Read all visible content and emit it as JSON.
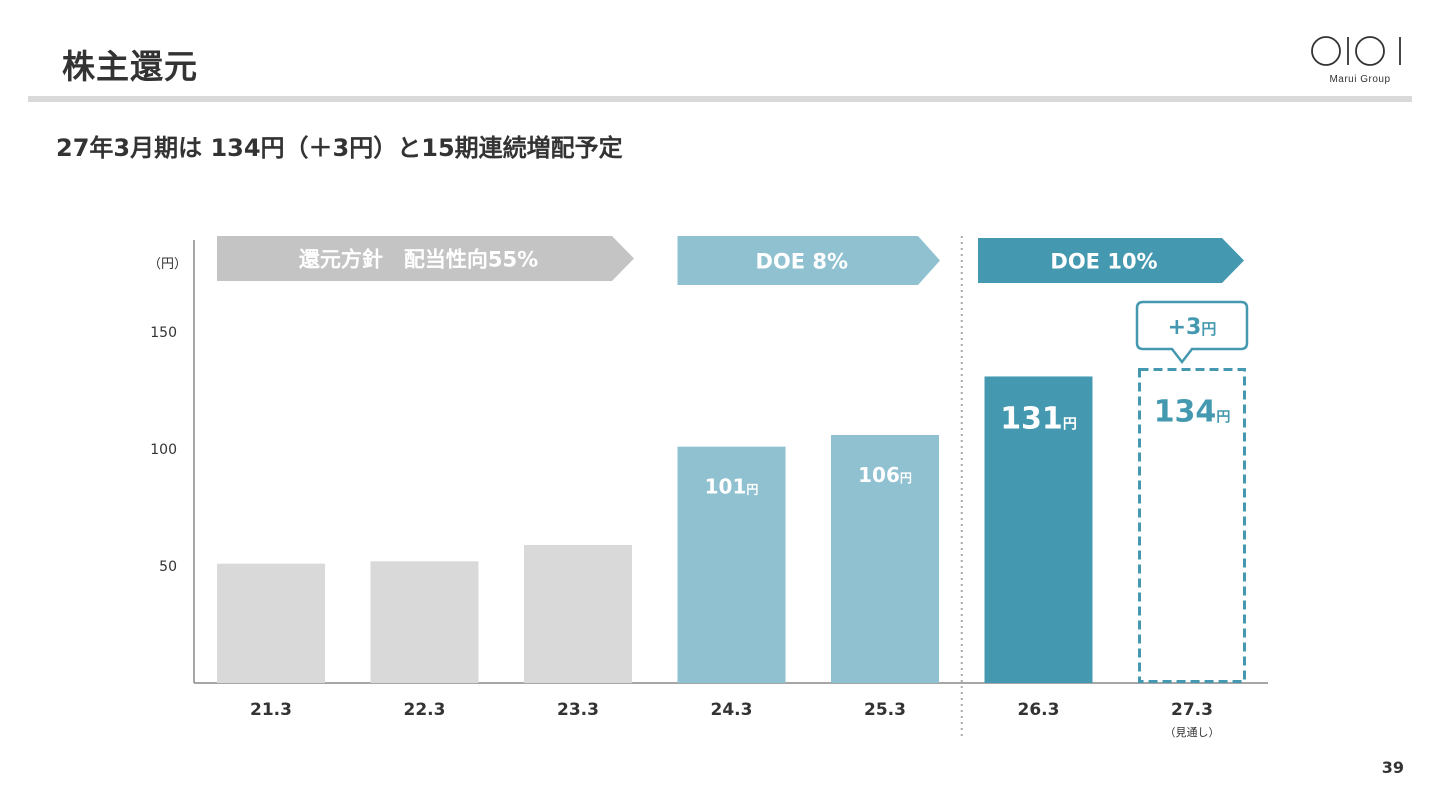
{
  "header": {
    "title": "株主還元",
    "logo_text": "Marui Group"
  },
  "headline": "27年3月期は 134円（＋3円）と15期連続増配予定",
  "page_number": "39",
  "colors": {
    "grey_bar": "#d9d9d9",
    "light_teal_bar": "#8fc1d1",
    "teal_bar": "#4499b0",
    "grey_banner": "#c4c4c4",
    "light_teal_banner": "#8fc1d1",
    "teal_banner": "#4499b0",
    "axis": "#888888"
  },
  "chart_data": {
    "type": "bar",
    "unit_label": "（円）",
    "categories": [
      "21.3",
      "22.3",
      "23.3",
      "24.3",
      "25.3",
      "26.3",
      "27.3"
    ],
    "category_notes": [
      "",
      "",
      "",
      "",
      "",
      "",
      "（見通し）"
    ],
    "values": [
      51,
      52,
      59,
      101,
      106,
      131,
      134
    ],
    "value_labels": [
      "",
      "",
      "",
      "101",
      "106",
      "131",
      "134"
    ],
    "value_unit": "円",
    "forecast_index": 6,
    "yticks": [
      50,
      100,
      150
    ],
    "ylim": [
      0,
      190
    ],
    "policy_banners": [
      {
        "label": "還元方針　配当性向55%",
        "from": 0,
        "to": 2
      },
      {
        "label": "DOE 8%",
        "from": 3,
        "to": 4
      },
      {
        "label": "DOE 10%",
        "from": 5,
        "to": 6
      }
    ],
    "callout": {
      "label": "+3",
      "unit": "円",
      "index": 6
    }
  }
}
